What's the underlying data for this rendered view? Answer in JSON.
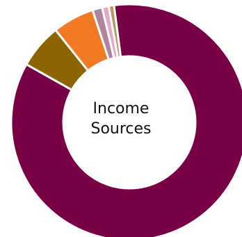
{
  "chart_data": {
    "type": "pie",
    "variant": "donut",
    "center_title_lines": [
      "Income",
      "Sources"
    ],
    "legend": "none",
    "slices": [
      {
        "value": 83.8,
        "color": "#7a0046"
      },
      {
        "value": 6.0,
        "color": "#8c6400"
      },
      {
        "value": 5.6,
        "color": "#f27a24"
      },
      {
        "value": 1.3,
        "color": "#b0839e"
      },
      {
        "value": 0.9,
        "color": "#e6a8c8"
      },
      {
        "value": 0.7,
        "color": "#b59a5b"
      }
    ]
  }
}
